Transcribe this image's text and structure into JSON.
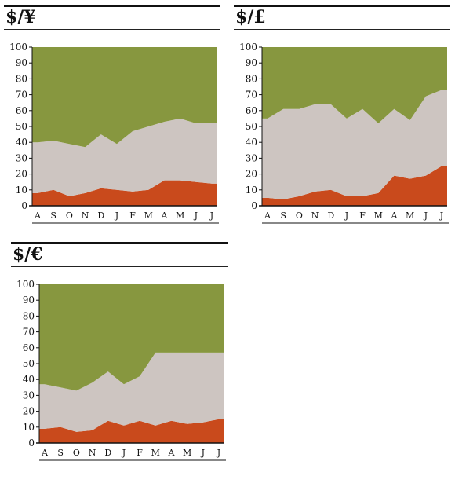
{
  "chart_data": [
    {
      "type": "area",
      "title": "$/¥",
      "categories": [
        "A",
        "S",
        "O",
        "N",
        "D",
        "J",
        "F",
        "M",
        "A",
        "M",
        "J",
        "J"
      ],
      "ylim": [
        0,
        100
      ],
      "yticks": [
        0,
        10,
        20,
        30,
        40,
        50,
        60,
        70,
        80,
        90,
        100
      ],
      "stacked_percent": true,
      "series": [
        {
          "values": [
            8,
            10,
            6,
            8,
            11,
            10,
            9,
            10,
            16,
            16,
            15,
            14
          ],
          "color": "#c94a1c"
        },
        {
          "values": [
            32,
            31,
            33,
            29,
            34,
            29,
            38,
            40,
            37,
            39,
            37,
            38
          ],
          "color": "#cdc5c1"
        },
        {
          "values": [
            60,
            59,
            61,
            63,
            55,
            61,
            53,
            50,
            47,
            45,
            48,
            48
          ],
          "color": "#87973f"
        }
      ]
    },
    {
      "type": "area",
      "title": "$/£",
      "categories": [
        "A",
        "S",
        "O",
        "N",
        "D",
        "J",
        "F",
        "M",
        "A",
        "M",
        "J",
        "J"
      ],
      "ylim": [
        0,
        100
      ],
      "yticks": [
        0,
        10,
        20,
        30,
        40,
        50,
        60,
        70,
        80,
        90,
        100
      ],
      "stacked_percent": true,
      "series": [
        {
          "values": [
            5,
            4,
            6,
            9,
            10,
            6,
            6,
            8,
            19,
            17,
            19,
            25
          ],
          "color": "#c94a1c"
        },
        {
          "values": [
            50,
            57,
            55,
            55,
            54,
            49,
            55,
            44,
            42,
            37,
            50,
            48
          ],
          "color": "#cdc5c1"
        },
        {
          "values": [
            45,
            39,
            39,
            36,
            36,
            45,
            39,
            48,
            39,
            46,
            31,
            27
          ],
          "color": "#87973f"
        }
      ]
    },
    {
      "type": "area",
      "title": "$/€",
      "categories": [
        "A",
        "S",
        "O",
        "N",
        "D",
        "J",
        "F",
        "M",
        "A",
        "M",
        "J",
        "J"
      ],
      "ylim": [
        0,
        100
      ],
      "yticks": [
        0,
        10,
        20,
        30,
        40,
        50,
        60,
        70,
        80,
        90,
        100
      ],
      "stacked_percent": true,
      "series": [
        {
          "values": [
            9,
            10,
            7,
            8,
            14,
            11,
            14,
            11,
            14,
            12,
            13,
            15
          ],
          "color": "#c94a1c"
        },
        {
          "values": [
            28,
            25,
            26,
            30,
            31,
            26,
            28,
            46,
            43,
            45,
            44,
            42
          ],
          "color": "#cdc5c1"
        },
        {
          "values": [
            63,
            65,
            67,
            62,
            55,
            63,
            58,
            43,
            43,
            43,
            43,
            43
          ],
          "color": "#87973f"
        }
      ]
    }
  ]
}
